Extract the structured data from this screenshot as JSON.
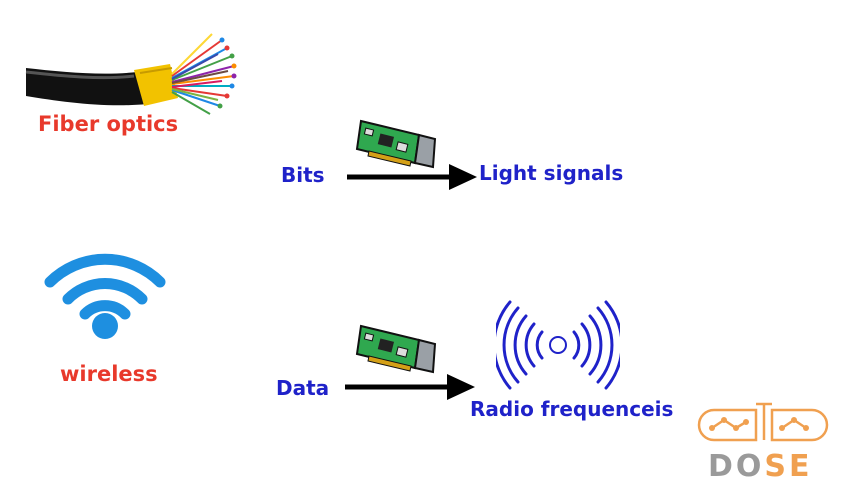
{
  "fiber": {
    "label": "Fiber optics"
  },
  "wireless": {
    "label": "wireless"
  },
  "row1": {
    "input": "Bits",
    "output": "Light signals"
  },
  "row2": {
    "input": "Data",
    "output": "Radio frequenceis"
  },
  "logo": {
    "text": "DOSE"
  },
  "colors": {
    "red_label": "#e8392b",
    "blue_label": "#1f22c9",
    "wifi": "#1e8fe0",
    "radio_waves": "#1f22c9",
    "nic_board": "#2fa84f",
    "logo_orange": "#f0a050",
    "logo_gray": "#9a9a9a"
  }
}
